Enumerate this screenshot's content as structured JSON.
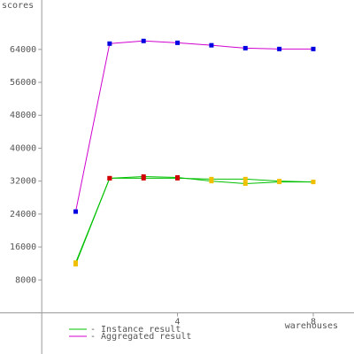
{
  "chart_data": {
    "type": "line",
    "ylabel": "scores",
    "xlabel": "warehouses",
    "xlim": [
      -1.23,
      9.2
    ],
    "ylim": [
      -10000,
      76000
    ],
    "xticks": [
      4,
      8
    ],
    "yticks": [
      8000,
      16000,
      24000,
      32000,
      40000,
      48000,
      56000,
      64000
    ],
    "series": [
      {
        "name": "- Instance result",
        "color": "#00c000",
        "x": [
          1,
          2,
          3,
          4,
          5,
          6,
          7,
          8
        ],
        "values": [
          12200,
          32700,
          33100,
          32900,
          32000,
          31400,
          31800,
          31800
        ],
        "marker_colors": [
          "#f0c000",
          "#d00000",
          "#d00000",
          "#d00000",
          "#f0c000",
          "#f0c000",
          "#f0c000",
          "#f0c000"
        ]
      },
      {
        "name": "- Instance result",
        "color": "#00c000",
        "x": [
          1,
          2,
          3,
          4,
          5,
          6,
          7,
          8
        ],
        "values": [
          11800,
          32700,
          32700,
          32700,
          32500,
          32500,
          32000,
          31800
        ],
        "marker_colors": [
          "#f0c000",
          "#d00000",
          "#d00000",
          "#d00000",
          "#f0c000",
          "#f0c000",
          "#f0c000",
          "#f0c000"
        ]
      },
      {
        "name": "- Aggregated result",
        "color": "#d000d0",
        "x": [
          1,
          2,
          3,
          4,
          5,
          6,
          7,
          8
        ],
        "values": [
          24600,
          65400,
          66050,
          65600,
          65000,
          64300,
          64100,
          64100
        ],
        "marker_colors": [
          "#0000e0",
          "#0000e0",
          "#0000e0",
          "#0000e0",
          "#0000e0",
          "#0000e0",
          "#0000e0",
          "#0000e0"
        ]
      }
    ]
  }
}
